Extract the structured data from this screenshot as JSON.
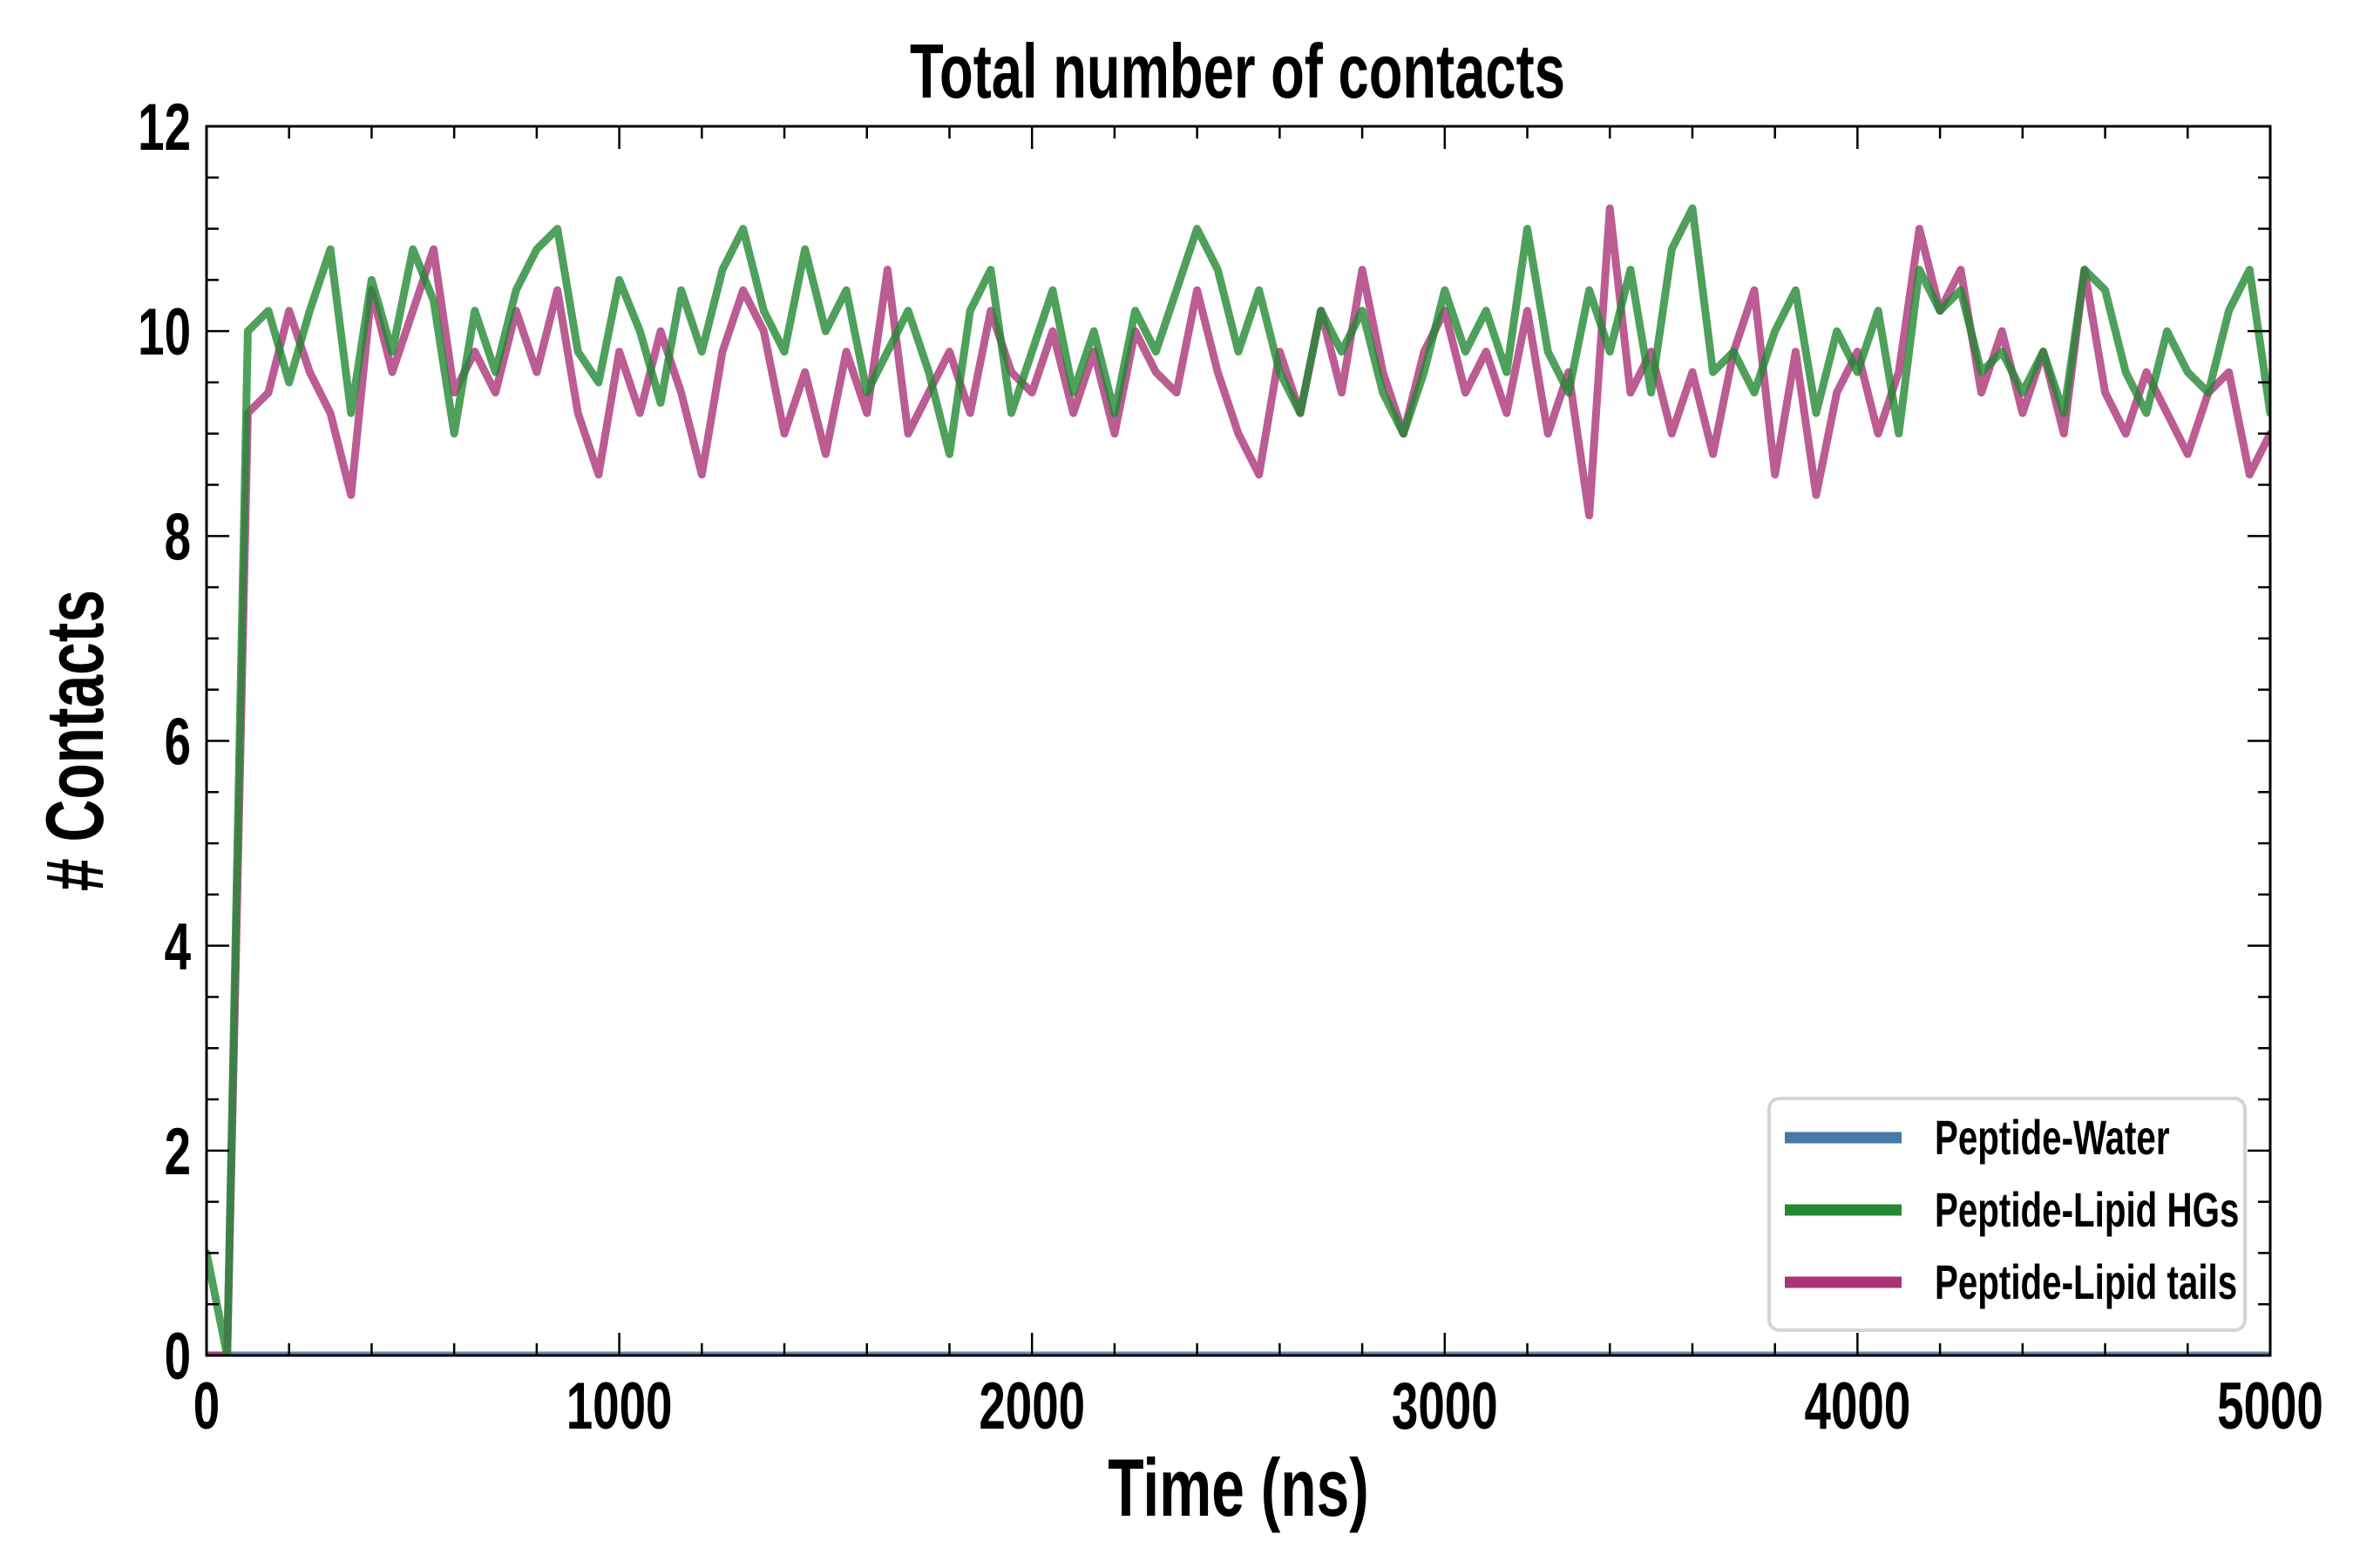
{
  "chart_data": {
    "type": "line",
    "title": "Total number of contacts",
    "xlabel": "Time (ns)",
    "ylabel": "# Contacts",
    "xlim": [
      0,
      5000
    ],
    "ylim": [
      0,
      12
    ],
    "xticks": [
      "0",
      "1000",
      "2000",
      "3000",
      "4000",
      "5000"
    ],
    "xtick_values": [
      0,
      1000,
      2000,
      3000,
      4000,
      5000
    ],
    "yticks": [
      "0",
      "2",
      "4",
      "6",
      "8",
      "10",
      "12"
    ],
    "ytick_values": [
      0,
      2,
      4,
      6,
      8,
      10,
      12
    ],
    "grid": false,
    "legend_position": "bottom-right",
    "x_step": 50,
    "series": [
      {
        "name": "Peptide-Water",
        "color": "#4878a8",
        "x": [
          0,
          5000
        ],
        "values": [
          0,
          0
        ]
      },
      {
        "name": "Peptide-Lipid HGs",
        "color": "#228833",
        "values": [
          1,
          0,
          10,
          10.2,
          9.5,
          10.2,
          10.8,
          9.2,
          10.5,
          9.8,
          10.8,
          10.3,
          9.0,
          10.2,
          9.6,
          10.4,
          10.8,
          11.0,
          9.8,
          9.5,
          10.5,
          10.0,
          9.3,
          10.4,
          9.8,
          10.6,
          11.0,
          10.2,
          9.8,
          10.8,
          10.0,
          10.4,
          9.4,
          9.8,
          10.2,
          9.6,
          8.8,
          10.2,
          10.6,
          9.2,
          9.8,
          10.4,
          9.4,
          10.0,
          9.2,
          10.2,
          9.8,
          10.4,
          11.0,
          10.6,
          9.8,
          10.4,
          9.6,
          9.2,
          10.2,
          9.8,
          10.2,
          9.4,
          9.0,
          9.6,
          10.4,
          9.8,
          10.2,
          9.6,
          11.0,
          9.8,
          9.4,
          10.4,
          9.8,
          10.6,
          9.4,
          10.8,
          11.2,
          9.6,
          9.8,
          9.4,
          10.0,
          10.4,
          9.2,
          10.0,
          9.6,
          10.2,
          9.0,
          10.6,
          10.2,
          10.4,
          9.6,
          9.8,
          9.4,
          9.8,
          9.2,
          10.6,
          10.4,
          9.6,
          9.2,
          10.0,
          9.6,
          9.4,
          10.2,
          10.6,
          9.2
        ]
      },
      {
        "name": "Peptide-Lipid tails",
        "color": "#aa3377",
        "values": [
          0,
          0,
          9.2,
          9.4,
          10.2,
          9.6,
          9.2,
          8.4,
          10.4,
          9.6,
          10.2,
          10.8,
          9.4,
          9.8,
          9.4,
          10.2,
          9.6,
          10.4,
          9.2,
          8.6,
          9.8,
          9.2,
          10.0,
          9.4,
          8.6,
          9.8,
          10.4,
          10.0,
          9.0,
          9.6,
          8.8,
          9.8,
          9.2,
          10.6,
          9.0,
          9.4,
          9.8,
          9.2,
          10.2,
          9.6,
          9.4,
          10.0,
          9.2,
          9.8,
          9.0,
          10.0,
          9.6,
          9.4,
          10.4,
          9.6,
          9.0,
          8.6,
          9.8,
          9.2,
          10.2,
          9.4,
          10.6,
          9.6,
          9.0,
          9.8,
          10.2,
          9.4,
          9.8,
          9.2,
          10.2,
          9.0,
          9.6,
          8.2,
          11.2,
          9.4,
          9.8,
          9.0,
          9.6,
          8.8,
          9.8,
          10.4,
          8.6,
          9.8,
          8.4,
          9.4,
          9.8,
          9.0,
          9.6,
          11.0,
          10.2,
          10.6,
          9.4,
          10.0,
          9.2,
          9.8,
          9.0,
          10.6,
          9.4,
          9.0,
          9.6,
          9.2,
          8.8,
          9.4,
          9.6,
          8.6,
          9.0
        ]
      }
    ]
  }
}
